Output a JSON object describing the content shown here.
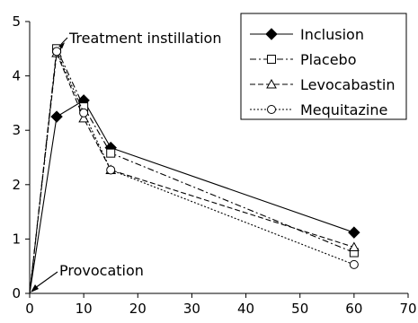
{
  "chart_data": {
    "type": "line",
    "title": "",
    "xlabel": "",
    "ylabel": "",
    "xlim": [
      0,
      70
    ],
    "ylim": [
      0,
      5
    ],
    "xticks": [
      0,
      10,
      20,
      30,
      40,
      50,
      60,
      70
    ],
    "yticks": [
      0,
      1,
      2,
      3,
      4,
      5
    ],
    "grid": false,
    "legend_position": "top-right",
    "series": [
      {
        "name": "Inclusion",
        "marker": "diamond-filled",
        "dash": "solid",
        "x": [
          0,
          5,
          10,
          15,
          60
        ],
        "y": [
          0,
          3.25,
          3.55,
          2.68,
          1.12
        ]
      },
      {
        "name": "Placebo",
        "marker": "square-open",
        "dash": "dashdot",
        "x": [
          0,
          5,
          10,
          15,
          60
        ],
        "y": [
          0,
          4.5,
          3.43,
          2.58,
          0.75
        ]
      },
      {
        "name": "Levocabastin",
        "marker": "triangle-open",
        "dash": "dashed",
        "x": [
          0,
          5,
          10,
          15,
          60
        ],
        "y": [
          0,
          4.42,
          3.22,
          2.27,
          0.85
        ]
      },
      {
        "name": "Mequitazine",
        "marker": "circle-open",
        "dash": "dotted",
        "x": [
          0,
          5,
          10,
          15,
          60
        ],
        "y": [
          0,
          4.45,
          3.32,
          2.27,
          0.53
        ]
      }
    ],
    "annotations": [
      {
        "text": "Treatment instillation",
        "x": 5,
        "y": 4.5
      },
      {
        "text": "Provocation",
        "x": 0,
        "y": 0
      }
    ]
  }
}
